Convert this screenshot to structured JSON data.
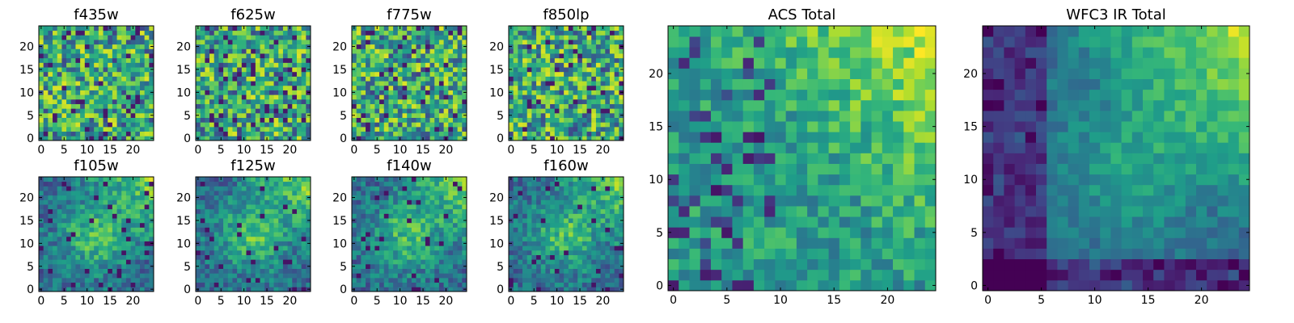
{
  "chart_data": [
    {
      "type": "heatmap",
      "title": "f435w",
      "xticks": [
        "0",
        "5",
        "10",
        "15",
        "20"
      ],
      "yticks": [
        "0",
        "5",
        "10",
        "15",
        "20"
      ],
      "xlim": [
        -0.5,
        24.5
      ],
      "ylim": [
        -0.5,
        24.5
      ],
      "origin": "lower",
      "colormap": "viridis",
      "pattern": "noise",
      "seed": 11,
      "vrange": [
        0.05,
        0.95
      ]
    },
    {
      "type": "heatmap",
      "title": "f625w",
      "xticks": [
        "0",
        "5",
        "10",
        "15",
        "20"
      ],
      "yticks": [
        "0",
        "5",
        "10",
        "15",
        "20"
      ],
      "xlim": [
        -0.5,
        24.5
      ],
      "ylim": [
        -0.5,
        24.5
      ],
      "origin": "lower",
      "colormap": "viridis",
      "pattern": "noise",
      "seed": 23,
      "vrange": [
        0.05,
        0.95
      ]
    },
    {
      "type": "heatmap",
      "title": "f775w",
      "xticks": [
        "0",
        "5",
        "10",
        "15",
        "20"
      ],
      "yticks": [
        "0",
        "5",
        "10",
        "15",
        "20"
      ],
      "xlim": [
        -0.5,
        24.5
      ],
      "ylim": [
        -0.5,
        24.5
      ],
      "origin": "lower",
      "colormap": "viridis",
      "pattern": "noise",
      "seed": 37,
      "vrange": [
        0.05,
        0.95
      ]
    },
    {
      "type": "heatmap",
      "title": "f850lp",
      "xticks": [
        "0",
        "5",
        "10",
        "15",
        "20"
      ],
      "yticks": [
        "0",
        "5",
        "10",
        "15",
        "20"
      ],
      "xlim": [
        -0.5,
        24.5
      ],
      "ylim": [
        -0.5,
        24.5
      ],
      "origin": "lower",
      "colormap": "viridis",
      "pattern": "noise",
      "seed": 41,
      "vrange": [
        0.05,
        0.95
      ]
    },
    {
      "type": "heatmap",
      "title": "ACS Total",
      "xticks": [
        "0",
        "5",
        "10",
        "15",
        "20"
      ],
      "yticks": [
        "0",
        "5",
        "10",
        "15",
        "20"
      ],
      "xlim": [
        -0.5,
        24.5
      ],
      "ylim": [
        -0.5,
        24.5
      ],
      "origin": "lower",
      "colormap": "viridis",
      "pattern": "acs",
      "seed": 53,
      "vrange": [
        0.0,
        1.0
      ]
    },
    {
      "type": "heatmap",
      "title": "WFC3 IR Total",
      "xticks": [
        "0",
        "5",
        "10",
        "15",
        "20"
      ],
      "yticks": [
        "0",
        "5",
        "10",
        "15",
        "20"
      ],
      "xlim": [
        -0.5,
        24.5
      ],
      "ylim": [
        -0.5,
        24.5
      ],
      "origin": "lower",
      "colormap": "viridis",
      "pattern": "ir",
      "seed": 67,
      "vrange": [
        0.0,
        1.0
      ]
    },
    {
      "type": "heatmap",
      "title": "f105w",
      "xticks": [
        "0",
        "5",
        "10",
        "15",
        "20"
      ],
      "yticks": [
        "0",
        "5",
        "10",
        "15",
        "20"
      ],
      "xlim": [
        -0.5,
        24.5
      ],
      "ylim": [
        -0.5,
        24.5
      ],
      "origin": "lower",
      "colormap": "viridis",
      "pattern": "smooth",
      "seed": 71,
      "vrange": [
        0.0,
        1.0
      ]
    },
    {
      "type": "heatmap",
      "title": "f125w",
      "xticks": [
        "0",
        "5",
        "10",
        "15",
        "20"
      ],
      "yticks": [
        "0",
        "5",
        "10",
        "15",
        "20"
      ],
      "xlim": [
        -0.5,
        24.5
      ],
      "ylim": [
        -0.5,
        24.5
      ],
      "origin": "lower",
      "colormap": "viridis",
      "pattern": "smooth",
      "seed": 83,
      "vrange": [
        0.0,
        1.0
      ]
    },
    {
      "type": "heatmap",
      "title": "f140w",
      "xticks": [
        "0",
        "5",
        "10",
        "15",
        "20"
      ],
      "yticks": [
        "0",
        "5",
        "10",
        "15",
        "20"
      ],
      "xlim": [
        -0.5,
        24.5
      ],
      "ylim": [
        -0.5,
        24.5
      ],
      "origin": "lower",
      "colormap": "viridis",
      "pattern": "smooth",
      "seed": 97,
      "vrange": [
        0.0,
        1.0
      ]
    },
    {
      "type": "heatmap",
      "title": "f160w",
      "xticks": [
        "0",
        "5",
        "10",
        "15",
        "20"
      ],
      "yticks": [
        "0",
        "5",
        "10",
        "15",
        "20"
      ],
      "xlim": [
        -0.5,
        24.5
      ],
      "ylim": [
        -0.5,
        24.5
      ],
      "origin": "lower",
      "colormap": "viridis",
      "pattern": "smooth",
      "seed": 101,
      "vrange": [
        0.0,
        1.0
      ]
    }
  ],
  "colors": {
    "viridis": [
      "#440154",
      "#482878",
      "#3e4989",
      "#31688e",
      "#26828e",
      "#1f9e89",
      "#35b779",
      "#6ece58",
      "#b5de2b",
      "#fde725"
    ],
    "background": "#ffffff",
    "axes": "#000000"
  }
}
